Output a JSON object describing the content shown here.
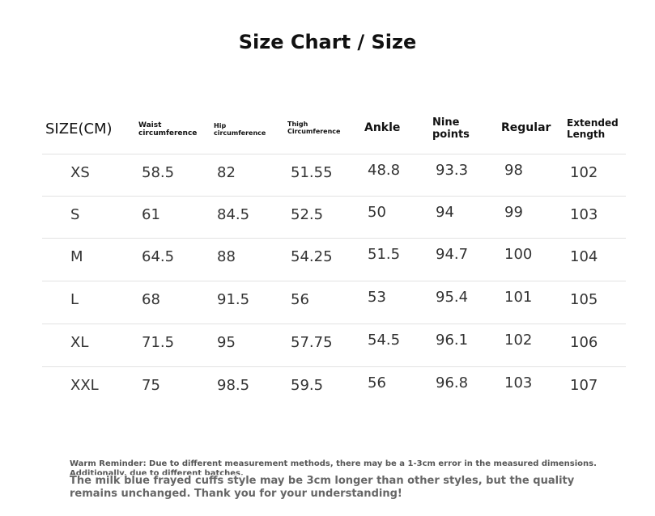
{
  "header": {
    "title": "Size Chart / Size"
  },
  "table": {
    "columns": [
      "SIZE(CM)",
      "Waist circumference",
      "Hip circumference",
      "Thigh Circumference",
      "Ankle",
      "Nine points",
      "Regular",
      "Extended Length"
    ],
    "rows": [
      [
        "XS",
        "58.5",
        "82",
        "51.55",
        "48.8",
        "93.3",
        "98",
        "102"
      ],
      [
        "S",
        "61",
        "84.5",
        "52.5",
        "50",
        "94",
        "99",
        "103"
      ],
      [
        "M",
        "64.5",
        "88",
        "54.25",
        "51.5",
        "94.7",
        "100",
        "104"
      ],
      [
        "L",
        "68",
        "91.5",
        "56",
        "53",
        "95.4",
        "101",
        "105"
      ],
      [
        "XL",
        "71.5",
        "95",
        "57.75",
        "54.5",
        "96.1",
        "102",
        "106"
      ],
      [
        "XXL",
        "75",
        "98.5",
        "59.5",
        "56",
        "96.8",
        "103",
        "107"
      ]
    ]
  },
  "footer": {
    "reminder": "Warm Reminder: Due to different measurement methods, there may be a 1-3cm error in the measured dimensions. Additionally, due to different batches,",
    "note": "The milk blue frayed cuffs style may be 3cm longer than other styles, but the quality remains unchanged. Thank you for your understanding!"
  }
}
